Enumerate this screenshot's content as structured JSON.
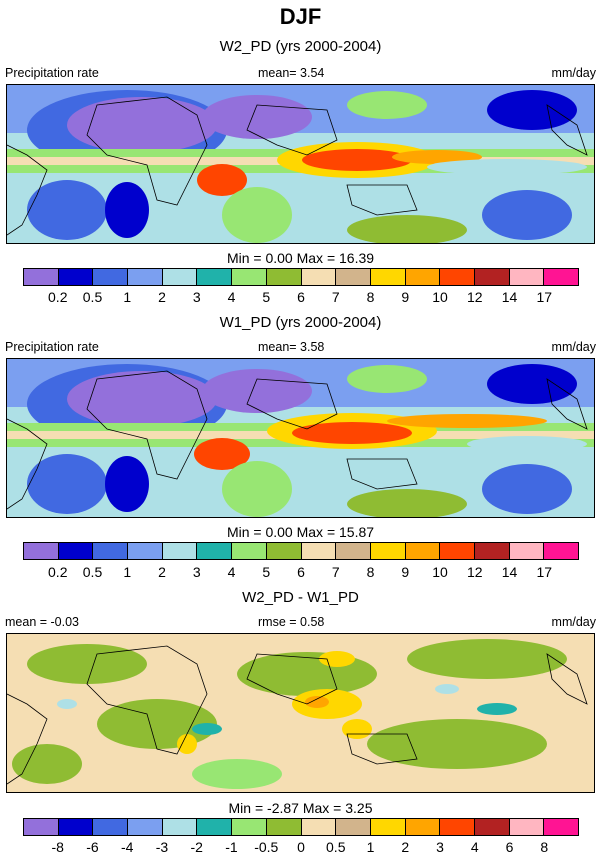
{
  "title": "DJF",
  "colors": {
    "precip": [
      "#9370db",
      "#0000cd",
      "#4169e1",
      "#7b9ff0",
      "#aee0e6",
      "#20b2aa",
      "#98e673",
      "#8fbc33",
      "#f5deb3",
      "#d2b48c",
      "#ffd700",
      "#ffa500",
      "#ff4500",
      "#b22222",
      "#ffb6c1",
      "#ff1493"
    ],
    "diff": [
      "#9370db",
      "#0000cd",
      "#4169e1",
      "#7b9ff0",
      "#aee0e6",
      "#20b2aa",
      "#98e673",
      "#8fbc33",
      "#f5deb3",
      "#d2b48c",
      "#ffd700",
      "#ffa500",
      "#ff4500",
      "#b22222",
      "#ffb6c1",
      "#ff1493"
    ]
  },
  "panels": [
    {
      "title": "W2_PD (yrs 2000-2004)",
      "left_label": "Precipitation rate",
      "center_label": "mean=   3.54",
      "right_label": "mm/day",
      "minmax": "Min =   0.00 Max =  16.39",
      "levels": [
        "0.2",
        "0.5",
        "1",
        "2",
        "3",
        "4",
        "5",
        "6",
        "7",
        "8",
        "9",
        "10",
        "12",
        "14",
        "17"
      ]
    },
    {
      "title": "W1_PD (yrs 2000-2004)",
      "left_label": "Precipitation rate",
      "center_label": "mean=   3.58",
      "right_label": "mm/day",
      "minmax": "Min =   0.00 Max =  15.87",
      "levels": [
        "0.2",
        "0.5",
        "1",
        "2",
        "3",
        "4",
        "5",
        "6",
        "7",
        "8",
        "9",
        "10",
        "12",
        "14",
        "17"
      ]
    },
    {
      "title": "W2_PD - W1_PD",
      "left_label": "mean =  -0.03",
      "center_label": "rmse =   0.58",
      "right_label": "mm/day",
      "minmax": "Min =  -2.87 Max =   3.25",
      "levels": [
        "-8",
        "-6",
        "-4",
        "-3",
        "-2",
        "-1",
        "-0.5",
        "0",
        "0.5",
        "1",
        "2",
        "3",
        "4",
        "6",
        "8"
      ]
    }
  ]
}
